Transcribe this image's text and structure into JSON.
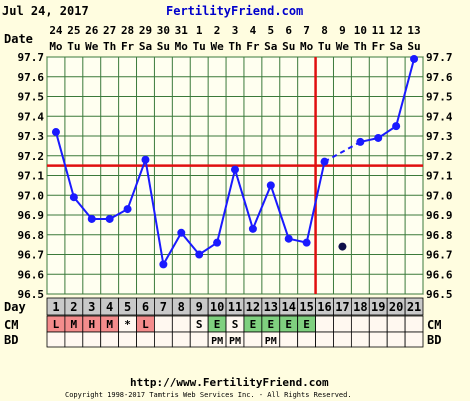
{
  "header": {
    "date": "Jul 24, 2017",
    "site": "FertilityFriend.com"
  },
  "row_labels": {
    "date": "Date",
    "day": "Day",
    "cm": "CM",
    "bd": "BD"
  },
  "footer": {
    "url": "http://www.FertilityFriend.com",
    "copyright": "Copyright 1998-2017 Tamtris Web Services Inc. - All Rights Reserved."
  },
  "colors": {
    "background": "#fffde0",
    "plot_bg": "#fffff0",
    "grid": "#3b7a3b",
    "line": "#1a1aff",
    "crosshair": "#e01010",
    "day_cell": "#c9c9c9",
    "cm_pink": "#f48c8c",
    "cm_green": "#7fd07f",
    "row_bg": "#fff8f0",
    "title_blue": "#0000cc"
  },
  "chart_data": {
    "type": "line",
    "title": "",
    "xlabel": "Day",
    "ylabel": "",
    "ylim": [
      96.5,
      97.7
    ],
    "yticks": [
      "97.7",
      "97.6",
      "97.5",
      "97.4",
      "97.3",
      "97.2",
      "97.1",
      "97.0",
      "96.9",
      "96.8",
      "96.7",
      "96.6",
      "96.5"
    ],
    "grid": true,
    "days": [
      "1",
      "2",
      "3",
      "4",
      "5",
      "6",
      "7",
      "8",
      "9",
      "10",
      "11",
      "12",
      "13",
      "14",
      "15",
      "16",
      "17",
      "18",
      "19",
      "20",
      "21"
    ],
    "date_numbers": [
      "24",
      "25",
      "26",
      "27",
      "28",
      "29",
      "30",
      "31",
      "1",
      "2",
      "3",
      "4",
      "5",
      "6",
      "7",
      "8",
      "9",
      "10",
      "11",
      "12",
      "13"
    ],
    "weekdays": [
      "Mo",
      "Tu",
      "We",
      "Th",
      "Fr",
      "Sa",
      "Su",
      "Mo",
      "Tu",
      "We",
      "Th",
      "Fr",
      "Sa",
      "Su",
      "Mo",
      "Tu",
      "We",
      "Th",
      "Fr",
      "Sa",
      "Su"
    ],
    "temperatures": [
      97.32,
      96.99,
      96.88,
      96.88,
      96.93,
      97.18,
      96.65,
      96.81,
      96.7,
      96.76,
      97.13,
      96.83,
      97.05,
      96.78,
      96.76,
      97.17,
      96.74,
      97.27,
      97.29,
      97.35,
      97.69
    ],
    "discarded_days": [
      "17"
    ],
    "interpolated_segment": [
      "16",
      "18"
    ],
    "coverline": 97.15,
    "ovulation_day": "15",
    "cm": [
      "L",
      "M",
      "H",
      "M",
      "*",
      "L",
      "",
      "",
      "S",
      "E",
      "S",
      "E",
      "E",
      "E",
      "E",
      "",
      "",
      "",
      "",
      "",
      ""
    ],
    "cm_colors": [
      "pink",
      "pink",
      "pink",
      "pink",
      "none",
      "pink",
      "none",
      "none",
      "none",
      "green",
      "none",
      "green",
      "green",
      "green",
      "green",
      "none",
      "none",
      "none",
      "none",
      "none",
      "none"
    ],
    "bd": [
      "",
      "",
      "",
      "",
      "",
      "",
      "",
      "",
      "",
      "PM",
      "PM",
      "",
      "PM",
      "",
      "",
      "",
      "",
      "",
      "",
      "",
      ""
    ]
  }
}
